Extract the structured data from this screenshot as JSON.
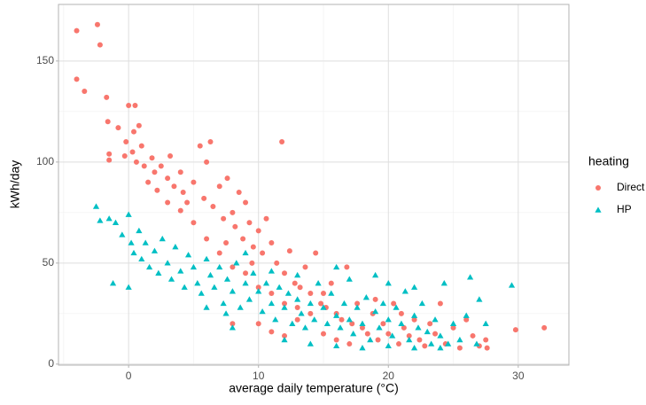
{
  "chart_data": {
    "type": "scatter",
    "x_label": "average daily temperature (°C)",
    "y_label": "kWh/day",
    "legend_title": "heating",
    "legend": "right",
    "grid": true,
    "xlim": [
      -5.4,
      33.9
    ],
    "ylim": [
      -0.5,
      178
    ],
    "xticks": [
      0,
      10,
      20,
      30
    ],
    "yticks": [
      0,
      50,
      100,
      150
    ],
    "minor_xticks": [
      -5,
      5,
      15,
      25
    ],
    "minor_yticks": [
      25,
      75,
      125
    ],
    "series": [
      {
        "name": "Direct",
        "color": "#F8766D",
        "shape": "circle",
        "x": [
          -4,
          -2.4,
          -2.2,
          -4,
          -3.4,
          -1.7,
          -1.6,
          -1.5,
          -1.5,
          0,
          0.5,
          0.8,
          0.4,
          -0.8,
          -0.2,
          0.3,
          0.6,
          -0.3,
          1,
          1.2,
          1.8,
          2,
          2.5,
          3,
          3.2,
          3.5,
          4,
          4.2,
          4.5,
          5,
          5.5,
          6,
          6.3,
          5.8,
          6.5,
          7,
          7.3,
          7.6,
          8,
          8.2,
          8.5,
          8.8,
          9,
          9.3,
          9.6,
          10,
          10.3,
          10.6,
          11,
          11.4,
          11.8,
          12,
          12.4,
          12.8,
          13.2,
          13.6,
          14,
          14.4,
          14.8,
          15.2,
          15.6,
          16,
          16.4,
          16.8,
          17.2,
          17.6,
          18,
          18.4,
          18.8,
          19.2,
          19.6,
          20,
          20.4,
          20.8,
          21.2,
          21.6,
          22,
          22.4,
          22.8,
          23.2,
          23.6,
          24,
          24.4,
          25,
          25.5,
          26,
          26.5,
          27,
          27.5,
          27.6,
          29.8,
          32,
          7,
          8,
          9,
          10,
          11,
          12,
          13,
          14,
          15,
          16,
          17,
          8,
          10,
          12,
          11,
          6,
          7.5,
          5,
          4,
          3,
          2.2,
          1.5,
          9.5,
          13,
          15,
          19,
          21
        ],
        "values": [
          165,
          168,
          158,
          141,
          135,
          132,
          120,
          104,
          101,
          128,
          128,
          118,
          115,
          117,
          110,
          105,
          100,
          103,
          108,
          98,
          102,
          95,
          98,
          92,
          103,
          88,
          95,
          85,
          80,
          90,
          108,
          100,
          110,
          82,
          78,
          88,
          72,
          92,
          75,
          68,
          85,
          62,
          80,
          70,
          58,
          66,
          55,
          72,
          60,
          50,
          110,
          45,
          56,
          40,
          38,
          48,
          35,
          55,
          30,
          28,
          40,
          25,
          22,
          48,
          20,
          30,
          18,
          15,
          25,
          12,
          20,
          15,
          30,
          10,
          18,
          14,
          22,
          12,
          9,
          20,
          15,
          30,
          10,
          18,
          8,
          22,
          14,
          9,
          12,
          8,
          17,
          18,
          55,
          48,
          45,
          38,
          35,
          30,
          28,
          25,
          15,
          12,
          10,
          20,
          20,
          14,
          16,
          62,
          60,
          70,
          76,
          80,
          86,
          90,
          50,
          22,
          35,
          32,
          25
        ]
      },
      {
        "name": "HP",
        "color": "#00BFC4",
        "shape": "triangle",
        "x": [
          -2.5,
          -2.2,
          -1.5,
          -1,
          -1.2,
          -0.5,
          0,
          0.2,
          0.4,
          0,
          0.8,
          1,
          1.3,
          1.6,
          2,
          2.3,
          2.6,
          3,
          3.3,
          3.6,
          4,
          4.3,
          4.6,
          5,
          5.3,
          5.6,
          6,
          6.3,
          6.6,
          7,
          7.3,
          7.6,
          8,
          8.3,
          8.6,
          9,
          9.3,
          9.6,
          10,
          10.3,
          10.6,
          11,
          11.3,
          11.6,
          12,
          12.3,
          12.6,
          13,
          13.3,
          13.6,
          14,
          14.3,
          14.6,
          15,
          15.3,
          15.6,
          16,
          16.3,
          16.6,
          17,
          17.3,
          17.6,
          18,
          18.3,
          18.6,
          19,
          19.3,
          19.6,
          20,
          20.3,
          20.6,
          21,
          21.3,
          21.6,
          22,
          22.3,
          22.6,
          23,
          23.3,
          23.6,
          24,
          24.3,
          24.6,
          25,
          25.5,
          26,
          26.3,
          26.8,
          27,
          27.5,
          29.5,
          17,
          16,
          19,
          20,
          22,
          13,
          11,
          9,
          7.5,
          6,
          8,
          12,
          14,
          16,
          18,
          20,
          22,
          24
        ],
        "values": [
          78,
          71,
          72,
          70,
          40,
          64,
          74,
          60,
          55,
          38,
          66,
          52,
          60,
          48,
          56,
          45,
          62,
          50,
          42,
          58,
          46,
          38,
          54,
          48,
          40,
          35,
          52,
          44,
          38,
          48,
          30,
          42,
          36,
          50,
          28,
          40,
          32,
          45,
          36,
          26,
          40,
          30,
          22,
          38,
          28,
          35,
          20,
          32,
          25,
          18,
          30,
          22,
          40,
          28,
          20,
          35,
          24,
          18,
          30,
          22,
          15,
          28,
          20,
          33,
          12,
          26,
          18,
          30,
          22,
          14,
          28,
          20,
          36,
          12,
          24,
          18,
          30,
          16,
          10,
          22,
          14,
          40,
          10,
          20,
          12,
          24,
          43,
          10,
          32,
          20,
          39,
          42,
          48,
          44,
          40,
          38,
          44,
          46,
          55,
          25,
          28,
          18,
          12,
          10,
          9,
          8,
          9,
          8,
          8
        ]
      }
    ]
  }
}
